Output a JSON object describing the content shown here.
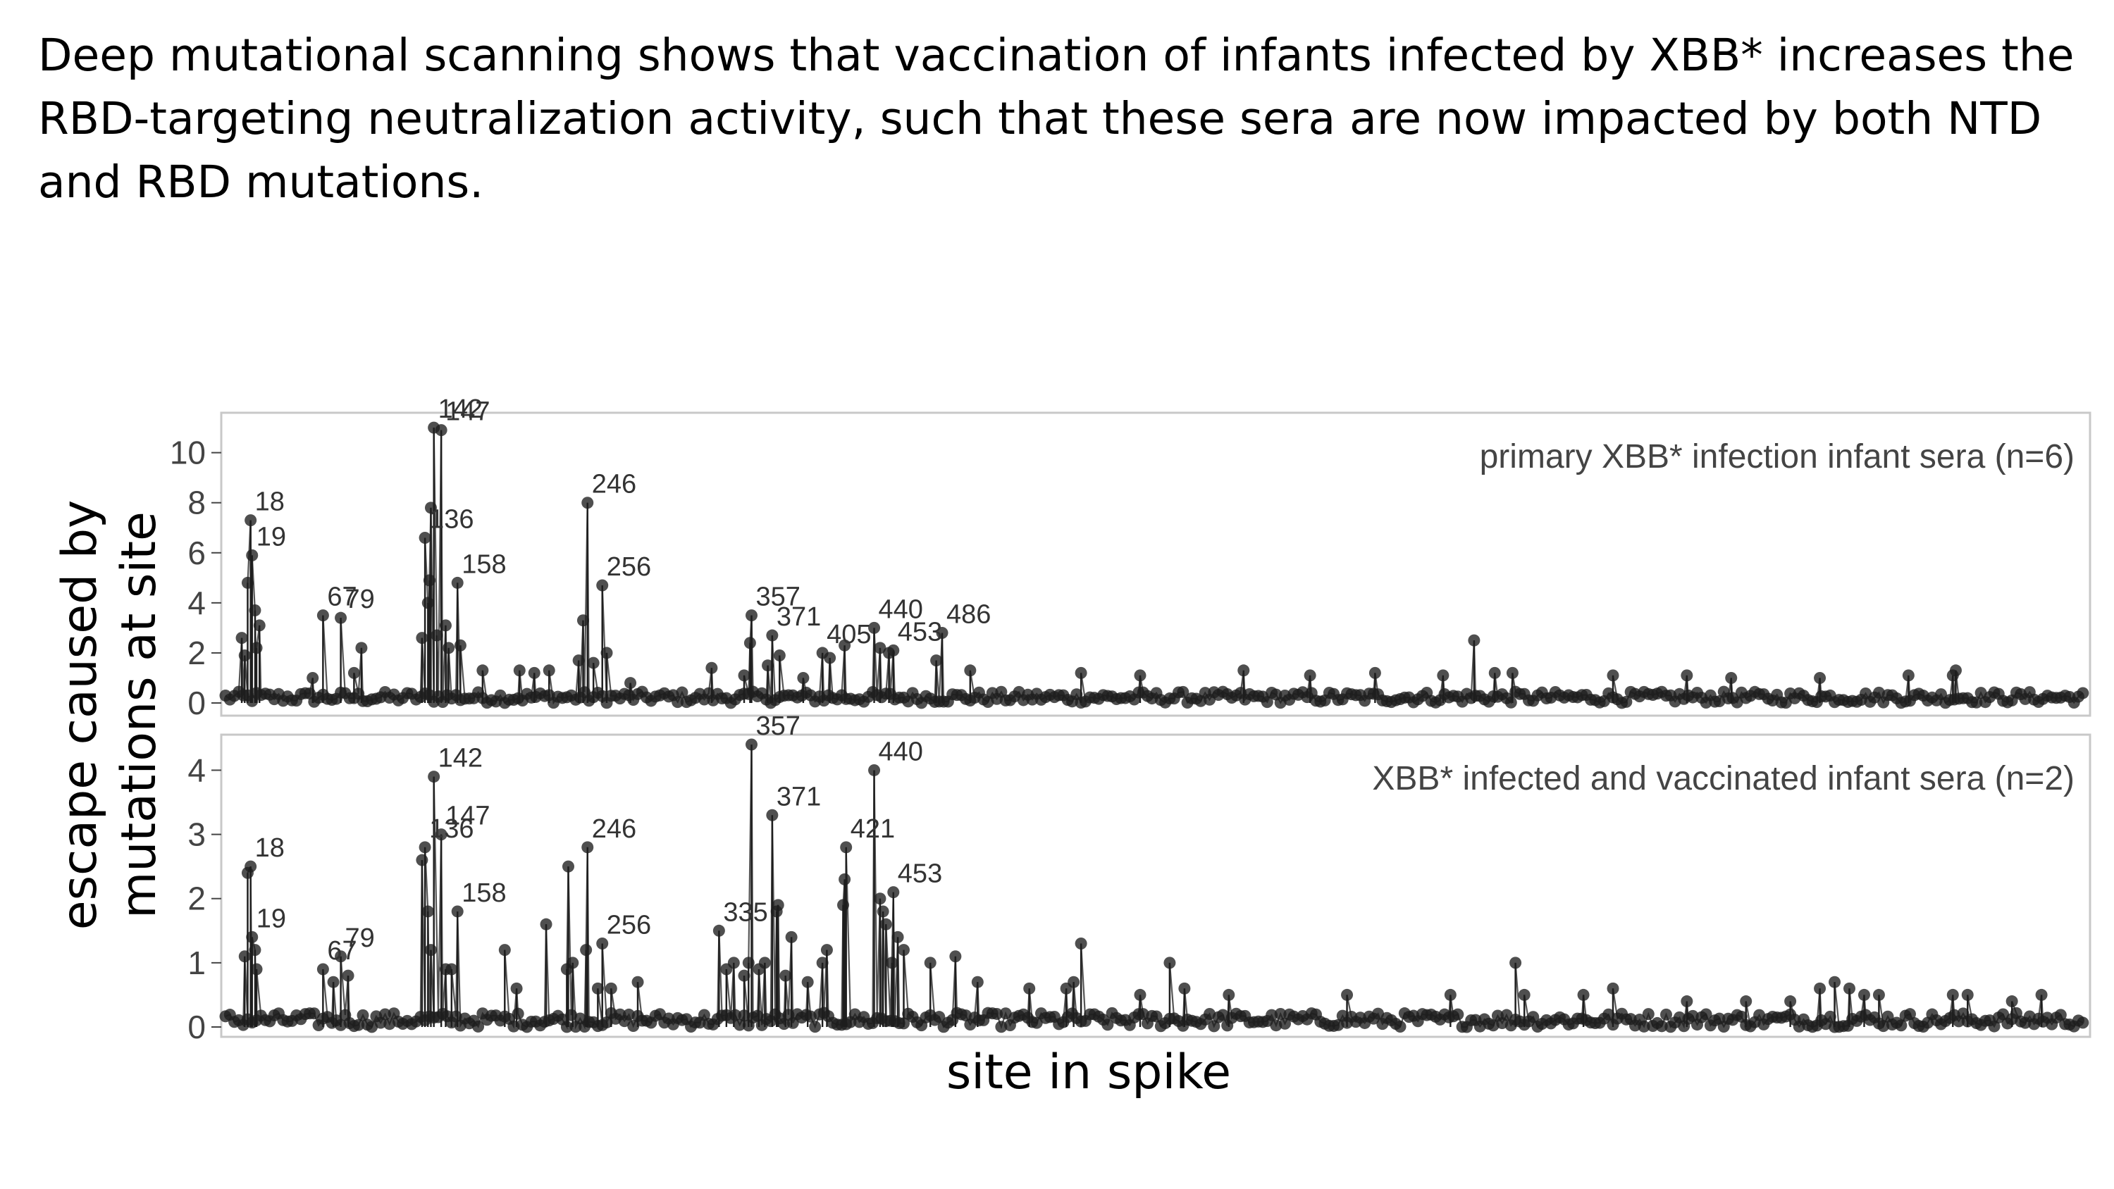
{
  "headline": "Deep mutational scanning shows that vaccination of infants infected by XBB* increases the RBD-targeting neutralization activity, such that these sera are now impacted by both NTD and RBD mutations.",
  "figure": {
    "ylabel_line1": "escape caused by",
    "ylabel_line2": "mutations at site",
    "xlabel": "site in spike"
  },
  "colors": {
    "marker": "#1e1e1e",
    "stem": "#1e1e1e",
    "frame": "#c8c8c8",
    "axis_text": "#444444"
  },
  "chart_data": [
    {
      "type": "scatter",
      "title": "primary XBB* infection infant sera (n=6)",
      "xlabel": "site in spike",
      "ylabel": "escape caused by mutations at site",
      "ylim": [
        0,
        11.2
      ],
      "xlim": [
        1,
        1260
      ],
      "yticks": [
        0,
        2,
        4,
        6,
        8,
        10
      ],
      "ytick_labels": [
        "0",
        "2",
        "4",
        "6",
        "8",
        "10"
      ],
      "grid": false,
      "peaks": [
        {
          "site": 18,
          "label": "18",
          "value": 7.3
        },
        {
          "site": 19,
          "label": "19",
          "value": 5.9
        },
        {
          "site": 67,
          "label": "67",
          "value": 3.5
        },
        {
          "site": 79,
          "label": "79",
          "value": 3.4
        },
        {
          "site": 136,
          "label": "136",
          "value": 6.6
        },
        {
          "site": 142,
          "label": "142",
          "value": 11.0
        },
        {
          "site": 147,
          "label": "147",
          "value": 10.9
        },
        {
          "site": 158,
          "label": "158",
          "value": 4.8
        },
        {
          "site": 246,
          "label": "246",
          "value": 8.0
        },
        {
          "site": 256,
          "label": "256",
          "value": 4.7
        },
        {
          "site": 357,
          "label": "357",
          "value": 3.5
        },
        {
          "site": 371,
          "label": "371",
          "value": 2.7
        },
        {
          "site": 405,
          "label": "405",
          "value": 2.0
        },
        {
          "site": 440,
          "label": "440",
          "value": 3.0
        },
        {
          "site": 453,
          "label": "453",
          "value": 2.1
        },
        {
          "site": 486,
          "label": "486",
          "value": 2.8
        }
      ],
      "other_points": [
        {
          "site": 12,
          "value": 2.6
        },
        {
          "site": 16,
          "value": 4.8
        },
        {
          "site": 21,
          "value": 3.7
        },
        {
          "site": 24,
          "value": 3.1
        },
        {
          "site": 22,
          "value": 2.2
        },
        {
          "site": 14,
          "value": 1.9
        },
        {
          "site": 93,
          "value": 2.2
        },
        {
          "site": 88,
          "value": 1.2
        },
        {
          "site": 60,
          "value": 1.0
        },
        {
          "site": 134,
          "value": 2.6
        },
        {
          "site": 138,
          "value": 4.0
        },
        {
          "site": 140,
          "value": 7.8
        },
        {
          "site": 139,
          "value": 4.9
        },
        {
          "site": 144,
          "value": 2.7
        },
        {
          "site": 150,
          "value": 3.1
        },
        {
          "site": 152,
          "value": 2.2
        },
        {
          "site": 160,
          "value": 2.3
        },
        {
          "site": 175,
          "value": 1.3
        },
        {
          "site": 200,
          "value": 1.3
        },
        {
          "site": 210,
          "value": 1.2
        },
        {
          "site": 220,
          "value": 1.3
        },
        {
          "site": 243,
          "value": 3.3
        },
        {
          "site": 240,
          "value": 1.7
        },
        {
          "site": 250,
          "value": 1.6
        },
        {
          "site": 259,
          "value": 2.0
        },
        {
          "site": 275,
          "value": 0.8
        },
        {
          "site": 330,
          "value": 1.4
        },
        {
          "site": 352,
          "value": 1.1
        },
        {
          "site": 356,
          "value": 2.4
        },
        {
          "site": 368,
          "value": 1.5
        },
        {
          "site": 376,
          "value": 1.9
        },
        {
          "site": 392,
          "value": 1.0
        },
        {
          "site": 410,
          "value": 1.8
        },
        {
          "site": 420,
          "value": 2.3
        },
        {
          "site": 444,
          "value": 2.2
        },
        {
          "site": 450,
          "value": 2.0
        },
        {
          "site": 482,
          "value": 1.7
        },
        {
          "site": 505,
          "value": 1.3
        },
        {
          "site": 580,
          "value": 1.2
        },
        {
          "site": 620,
          "value": 1.1
        },
        {
          "site": 690,
          "value": 1.3
        },
        {
          "site": 735,
          "value": 1.1
        },
        {
          "site": 779,
          "value": 1.2
        },
        {
          "site": 825,
          "value": 1.1
        },
        {
          "site": 846,
          "value": 2.5
        },
        {
          "site": 860,
          "value": 1.2
        },
        {
          "site": 872,
          "value": 1.2
        },
        {
          "site": 940,
          "value": 1.1
        },
        {
          "site": 990,
          "value": 1.1
        },
        {
          "site": 1020,
          "value": 1.0
        },
        {
          "site": 1080,
          "value": 1.0
        },
        {
          "site": 1140,
          "value": 1.1
        },
        {
          "site": 1170,
          "value": 1.1
        },
        {
          "site": 1172,
          "value": 1.3
        }
      ]
    },
    {
      "type": "scatter",
      "title": "XBB* infected and vaccinated infant sera (n=2)",
      "xlabel": "site in spike",
      "ylabel": "escape caused by mutations at site",
      "ylim": [
        0,
        4.4
      ],
      "xlim": [
        1,
        1260
      ],
      "yticks": [
        0,
        1,
        2,
        3,
        4
      ],
      "ytick_labels": [
        "0",
        "1",
        "2",
        "3",
        "4"
      ],
      "grid": false,
      "peaks": [
        {
          "site": 18,
          "label": "18",
          "value": 2.5
        },
        {
          "site": 19,
          "label": "19",
          "value": 1.4
        },
        {
          "site": 67,
          "label": "67",
          "value": 0.9
        },
        {
          "site": 79,
          "label": "79",
          "value": 1.1
        },
        {
          "site": 136,
          "label": "136",
          "value": 2.8
        },
        {
          "site": 142,
          "label": "142",
          "value": 3.9
        },
        {
          "site": 147,
          "label": "147",
          "value": 3.0
        },
        {
          "site": 158,
          "label": "158",
          "value": 1.8
        },
        {
          "site": 246,
          "label": "246",
          "value": 2.8
        },
        {
          "site": 256,
          "label": "256",
          "value": 1.3
        },
        {
          "site": 335,
          "label": "335",
          "value": 1.5
        },
        {
          "site": 357,
          "label": "357",
          "value": 4.4
        },
        {
          "site": 371,
          "label": "371",
          "value": 3.3
        },
        {
          "site": 421,
          "label": "421",
          "value": 2.8
        },
        {
          "site": 440,
          "label": "440",
          "value": 4.0
        },
        {
          "site": 453,
          "label": "453",
          "value": 2.1
        }
      ],
      "other_points": [
        {
          "site": 16,
          "value": 2.4
        },
        {
          "site": 14,
          "value": 1.1
        },
        {
          "site": 21,
          "value": 1.2
        },
        {
          "site": 22,
          "value": 0.9
        },
        {
          "site": 74,
          "value": 0.7
        },
        {
          "site": 84,
          "value": 0.8
        },
        {
          "site": 134,
          "value": 2.6
        },
        {
          "site": 138,
          "value": 1.8
        },
        {
          "site": 140,
          "value": 1.2
        },
        {
          "site": 150,
          "value": 0.9
        },
        {
          "site": 154,
          "value": 0.9
        },
        {
          "site": 190,
          "value": 1.2
        },
        {
          "site": 198,
          "value": 0.6
        },
        {
          "site": 218,
          "value": 1.6
        },
        {
          "site": 232,
          "value": 0.9
        },
        {
          "site": 233,
          "value": 2.5
        },
        {
          "site": 236,
          "value": 1.0
        },
        {
          "site": 245,
          "value": 1.2
        },
        {
          "site": 253,
          "value": 0.6
        },
        {
          "site": 262,
          "value": 0.6
        },
        {
          "site": 280,
          "value": 0.7
        },
        {
          "site": 340,
          "value": 0.9
        },
        {
          "site": 345,
          "value": 1.0
        },
        {
          "site": 352,
          "value": 0.8
        },
        {
          "site": 355,
          "value": 1.0
        },
        {
          "site": 362,
          "value": 0.9
        },
        {
          "site": 366,
          "value": 1.0
        },
        {
          "site": 374,
          "value": 1.8
        },
        {
          "site": 375,
          "value": 1.9
        },
        {
          "site": 380,
          "value": 0.8
        },
        {
          "site": 384,
          "value": 1.4
        },
        {
          "site": 395,
          "value": 0.7
        },
        {
          "site": 405,
          "value": 1.0
        },
        {
          "site": 408,
          "value": 1.2
        },
        {
          "site": 419,
          "value": 1.9
        },
        {
          "site": 420,
          "value": 2.3
        },
        {
          "site": 444,
          "value": 2.0
        },
        {
          "site": 446,
          "value": 1.8
        },
        {
          "site": 448,
          "value": 1.6
        },
        {
          "site": 452,
          "value": 1.0
        },
        {
          "site": 456,
          "value": 1.4
        },
        {
          "site": 460,
          "value": 1.2
        },
        {
          "site": 478,
          "value": 1.0
        },
        {
          "site": 495,
          "value": 1.1
        },
        {
          "site": 510,
          "value": 0.7
        },
        {
          "site": 545,
          "value": 0.6
        },
        {
          "site": 570,
          "value": 0.6
        },
        {
          "site": 575,
          "value": 0.7
        },
        {
          "site": 580,
          "value": 1.3
        },
        {
          "site": 620,
          "value": 0.5
        },
        {
          "site": 640,
          "value": 1.0
        },
        {
          "site": 650,
          "value": 0.6
        },
        {
          "site": 680,
          "value": 0.5
        },
        {
          "site": 760,
          "value": 0.5
        },
        {
          "site": 830,
          "value": 0.5
        },
        {
          "site": 874,
          "value": 1.0
        },
        {
          "site": 880,
          "value": 0.5
        },
        {
          "site": 920,
          "value": 0.5
        },
        {
          "site": 940,
          "value": 0.6
        },
        {
          "site": 990,
          "value": 0.4
        },
        {
          "site": 1030,
          "value": 0.4
        },
        {
          "site": 1060,
          "value": 0.4
        },
        {
          "site": 1080,
          "value": 0.6
        },
        {
          "site": 1090,
          "value": 0.7
        },
        {
          "site": 1100,
          "value": 0.6
        },
        {
          "site": 1110,
          "value": 0.5
        },
        {
          "site": 1120,
          "value": 0.5
        },
        {
          "site": 1170,
          "value": 0.5
        },
        {
          "site": 1180,
          "value": 0.5
        },
        {
          "site": 1210,
          "value": 0.4
        },
        {
          "site": 1230,
          "value": 0.5
        }
      ]
    }
  ]
}
